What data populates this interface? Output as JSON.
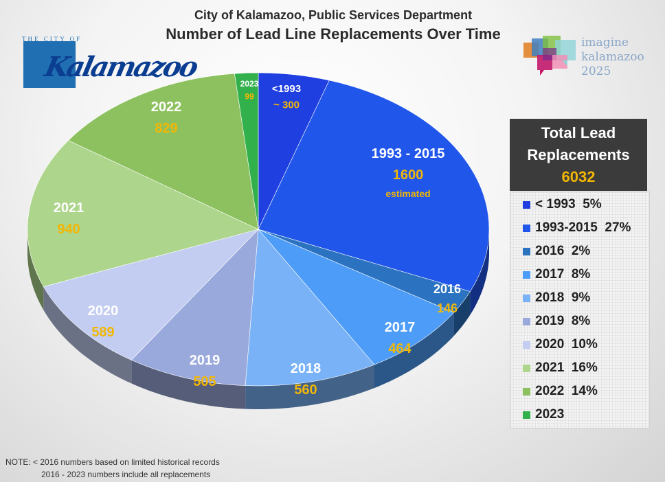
{
  "header": {
    "subtitle": "City of Kalamazoo, Public Services Department",
    "title": "Number of Lead Line Replacements Over Time"
  },
  "logos": {
    "city_small": "THE CITY OF",
    "city_script": "Kalamazoo",
    "imagine_line1": "imagine",
    "imagine_line2": "kalamazoo",
    "imagine_line3": "2025"
  },
  "total_box": {
    "line1": "Total Lead",
    "line2": "Replacements",
    "value": "6032"
  },
  "note": {
    "line1": "NOTE: < 2016 numbers based on limited historical records",
    "line2": "2016 - 2023 numbers include all replacements"
  },
  "colors": {
    "label_white": "#ffffff",
    "label_gold": "#f2b705",
    "total_value": "#f2b705"
  },
  "chart_data": {
    "type": "pie",
    "title": "Number of Lead Line Replacements Over Time",
    "style": "3d",
    "start": "top, clockwise",
    "slices": [
      {
        "label": "<1993",
        "value": 300,
        "value_label": "~ 300",
        "color": "#1f3fe0",
        "legend": "< 1993  5%"
      },
      {
        "label": "1993 - 2015",
        "value": 1600,
        "value_label": "1600",
        "note": "estimated",
        "color": "#2156ea",
        "legend": "1993-2015  27%"
      },
      {
        "label": "2016",
        "value": 146,
        "value_label": "146",
        "color": "#2b73c1",
        "legend": "2016  2%"
      },
      {
        "label": "2017",
        "value": 464,
        "value_label": "464",
        "color": "#4d9cf7",
        "legend": "2017  8%"
      },
      {
        "label": "2018",
        "value": 560,
        "value_label": "560",
        "color": "#79b2f6",
        "legend": "2018  9%"
      },
      {
        "label": "2019",
        "value": 505,
        "value_label": "505",
        "color": "#9aa9dc",
        "legend": "2019  8%"
      },
      {
        "label": "2020",
        "value": 589,
        "value_label": "589",
        "color": "#c3cdf1",
        "legend": "2020  10%"
      },
      {
        "label": "2021",
        "value": 940,
        "value_label": "940",
        "color": "#add58c",
        "legend": "2021  16%"
      },
      {
        "label": "2022",
        "value": 829,
        "value_label": "829",
        "color": "#8dc160",
        "legend": "2022  14%"
      },
      {
        "label": "2023",
        "value": 99,
        "value_label": "99",
        "color": "#32b04c",
        "legend": "2023"
      }
    ]
  }
}
